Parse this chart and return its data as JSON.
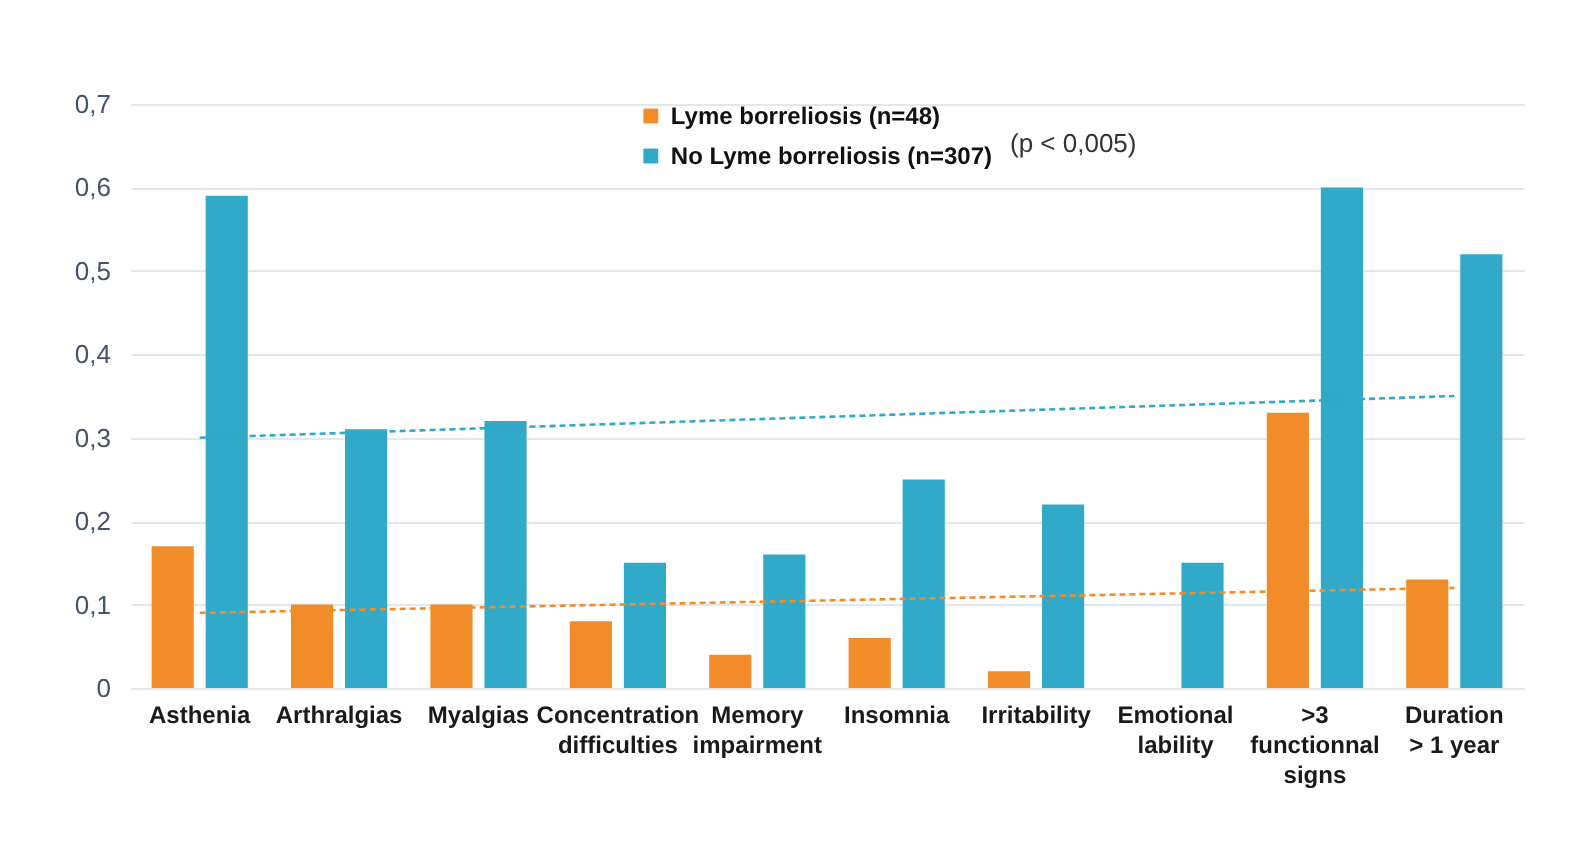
{
  "chart_data": {
    "type": "bar",
    "categories": [
      "Asthenia",
      "Arthralgias",
      "Myalgias",
      "Concentration difficulties",
      "Memory impairment",
      "Insomnia",
      "Irritability",
      "Emotional lability",
      ">3 functionnal signs",
      "Duration > 1 year"
    ],
    "series": [
      {
        "name": "Lyme borreliosis (n=48)",
        "color": "#f28c28",
        "values": [
          0.17,
          0.1,
          0.1,
          0.08,
          0.04,
          0.06,
          0.02,
          0,
          0.33,
          0.13
        ]
      },
      {
        "name": "No Lyme borreliosis (n=307)",
        "color": "#31a9c9",
        "values": [
          0.59,
          0.31,
          0.32,
          0.15,
          0.16,
          0.25,
          0.22,
          0.15,
          0.6,
          0.52
        ]
      },
      {
        "type": "line",
        "x": [
          "Asthenia",
          "Duration > 1 year"
        ],
        "values": [
          0.09,
          0.12
        ],
        "color": "#f28c28",
        "line_style": "dashed"
      },
      {
        "type": "line",
        "x": [
          "Asthenia",
          "Duration > 1 year"
        ],
        "values": [
          0.3,
          0.35
        ],
        "color": "#31a9c9",
        "line_style": "dashed"
      }
    ],
    "ylim": [
      0,
      0.7
    ],
    "yticks": [
      0,
      {
        "value": 0.1,
        "label": "0,1"
      },
      {
        "value": 0.2,
        "label": "0,2"
      },
      {
        "value": 0.3,
        "label": "0,3"
      },
      {
        "value": 0.4,
        "label": "0,4"
      },
      {
        "value": 0.5,
        "label": "0,5"
      },
      {
        "value": 0.6,
        "label": "0,6"
      },
      {
        "value": 0.7,
        "label": "0,7"
      }
    ],
    "grid": "y",
    "legend": "top",
    "annotations": [
      "(p < 0,005)"
    ]
  }
}
